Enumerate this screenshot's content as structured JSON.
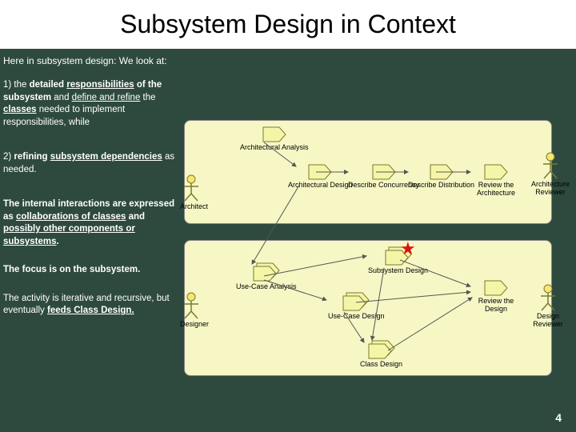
{
  "title": "Subsystem Design in Context",
  "intro": "Here in subsystem design:  We look at:",
  "bullets": {
    "b1_html": "1) the <b>detailed <u>responsibilities</u> of the subsystem</b> and <u>define and refine</u> the <u><b>classes</b></u> needed to implement responsibilities, while",
    "b2_html": "2) <b>refining <u>subsystem dependencies</u></b> as needed.",
    "b3_html": "<b>The internal interactions are expressed as <u>collaborations of classes</u> and <u>possibly other components or subsystems</u>.</b>",
    "b4_html": "<b>The focus is on the subsystem.</b>",
    "b5_html": "The activity is iterative and recursive, but eventually <u><b>feeds Class Design.</b></u>"
  },
  "actors": {
    "architect": "Architect",
    "arch_reviewer": "Architecture Reviewer",
    "designer": "Designer",
    "design_reviewer": "Design Reviewer"
  },
  "activities": {
    "arch_analysis": "Architectural Analysis",
    "arch_design": "Architectural Design",
    "desc_concurrency": "Describe Concurrency",
    "desc_distribution": "Describe Distribution",
    "review_arch": "Review the Architecture",
    "usecase_analysis": "Use-Case Analysis",
    "subsystem_design": "Subsystem Design",
    "usecase_design": "Use-Case Design",
    "class_design": "Class Design",
    "review_design": "Review the Design"
  },
  "page_number": "4",
  "colors": {
    "bg": "#2e4a3f",
    "panel": "#f7f7c5",
    "box_fill": "#f5f5a8",
    "box_stroke": "#7a7a30",
    "actor_head": "#f7e770",
    "star": "#d11"
  }
}
